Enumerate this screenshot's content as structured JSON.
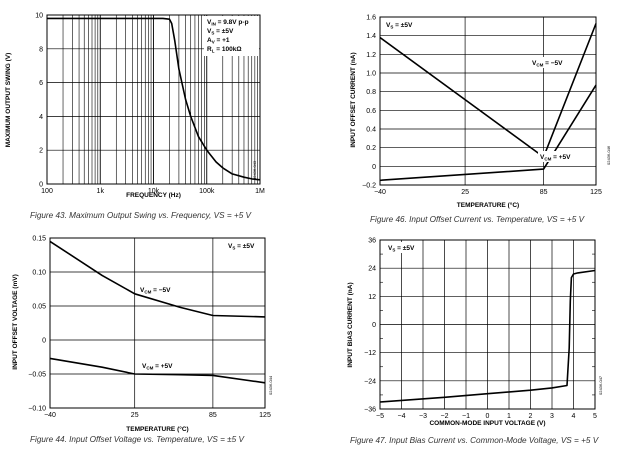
{
  "chart_data": [
    {
      "id": "fig43",
      "type": "line",
      "xscale": "log",
      "title": "",
      "caption": "Figure 43. Maximum Output Swing vs. Frequency, VS = +5 V",
      "xlabel": "FREQUENCY (Hz)",
      "ylabel": "MAXIMUM OUTPUT SWING (V)",
      "xlim": [
        100,
        1000000
      ],
      "ylim": [
        0,
        10
      ],
      "xtick_values": [
        100,
        1000,
        10000,
        100000,
        1000000
      ],
      "xtick_labels": [
        "100",
        "1k",
        "10k",
        "100k",
        "1M"
      ],
      "ytick_values": [
        0,
        2,
        4,
        6,
        8,
        10
      ],
      "ytick_labels": [
        "0",
        "2",
        "4",
        "6",
        "8",
        "10"
      ],
      "annotations": [
        "VIN = 9.8V p-p",
        "VS = ±5V",
        "AV = +1",
        "RL = 100kΩ"
      ],
      "code": "02436-043",
      "series": [
        {
          "name": "VOUT",
          "x": [
            100,
            1000,
            10000,
            15000,
            20000,
            22000,
            25000,
            30000,
            40000,
            50000,
            70000,
            100000,
            150000,
            200000,
            300000,
            500000,
            700000,
            1000000
          ],
          "y": [
            9.8,
            9.8,
            9.8,
            9.8,
            9.75,
            9.5,
            8.5,
            6.8,
            5.0,
            4.0,
            2.8,
            2.0,
            1.3,
            0.95,
            0.6,
            0.4,
            0.3,
            0.25
          ]
        }
      ]
    },
    {
      "id": "fig46",
      "type": "line",
      "xscale": "linear",
      "title": "",
      "caption": "Figure 46. Input Offset Current vs. Temperature, VS = +5 V",
      "xlabel": "TEMPERATURE (°C)",
      "ylabel": "INPUT OFFSET CURRENT (nA)",
      "xlim": [
        -40,
        125
      ],
      "ylim": [
        -0.2,
        1.6
      ],
      "xtick_values": [
        -40,
        25,
        85,
        125
      ],
      "xtick_labels": [
        "−40",
        "25",
        "85",
        "125"
      ],
      "ytick_values": [
        -0.2,
        0,
        0.2,
        0.4,
        0.6,
        0.8,
        1.0,
        1.2,
        1.4,
        1.6
      ],
      "ytick_labels": [
        "−0.2",
        "0",
        "0.2",
        "0.4",
        "0.6",
        "0.8",
        "1.0",
        "1.2",
        "1.4",
        "1.6"
      ],
      "annotations": [
        "VS = ±5V",
        "VCM = −5V",
        "VCM = +5V"
      ],
      "code": "02436-046",
      "series": [
        {
          "name": "VCM = −5V",
          "x": [
            -40,
            85,
            125
          ],
          "y": [
            1.38,
            0.1,
            1.53
          ]
        },
        {
          "name": "VCM = +5V",
          "x": [
            -40,
            85,
            125
          ],
          "y": [
            -0.15,
            -0.03,
            0.87
          ]
        }
      ]
    },
    {
      "id": "fig44",
      "type": "line",
      "xscale": "linear",
      "title": "",
      "caption": "Figure 44. Input Offset Voltage vs. Temperature, VS = ±5 V",
      "xlabel": "TEMPERATURE (°C)",
      "ylabel": "INPUT OFFSET VOLTAGE (mV)",
      "xlim": [
        -40,
        125
      ],
      "ylim": [
        -0.1,
        0.15
      ],
      "xtick_values": [
        -40,
        25,
        85,
        125
      ],
      "xtick_labels": [
        "−40",
        "25",
        "85",
        "125"
      ],
      "ytick_values": [
        -0.1,
        -0.05,
        0,
        0.05,
        0.1,
        0.15
      ],
      "ytick_labels": [
        "−0.10",
        "−0.05",
        "0",
        "0.05",
        "0.10",
        "0.15"
      ],
      "annotations": [
        "VS = ±5V",
        "VCM = −5V",
        "VCM = +5V"
      ],
      "code": "02436-044",
      "series": [
        {
          "name": "VCM = −5V",
          "x": [
            -40,
            0,
            25,
            60,
            85,
            125
          ],
          "y": [
            0.145,
            0.095,
            0.068,
            0.048,
            0.036,
            0.034
          ]
        },
        {
          "name": "VCM = +5V",
          "x": [
            -40,
            0,
            25,
            60,
            85,
            125
          ],
          "y": [
            -0.027,
            -0.04,
            -0.05,
            -0.051,
            -0.052,
            -0.063
          ]
        }
      ]
    },
    {
      "id": "fig47",
      "type": "line",
      "xscale": "linear",
      "title": "",
      "caption": "Figure 47. Input Bias Current vs. Common-Mode Voltage, VS = +5 V",
      "xlabel": "COMMON-MODE INPUT VOLTAGE (V)",
      "ylabel": "INPUT BIAS CURRENT (nA)",
      "xlim": [
        -5,
        5
      ],
      "ylim": [
        -36,
        36
      ],
      "xtick_values": [
        -5,
        -4,
        -3,
        -2,
        -1,
        0,
        1,
        2,
        3,
        4,
        5
      ],
      "xtick_labels": [
        "−5",
        "−4",
        "−3",
        "−2",
        "−1",
        "0",
        "1",
        "2",
        "3",
        "4",
        "5"
      ],
      "ytick_values": [
        -36,
        -24,
        -12,
        0,
        12,
        24,
        36
      ],
      "ytick_labels": [
        "−36",
        "−24",
        "−12",
        "0",
        "12",
        "24",
        "36"
      ],
      "annotations": [
        "VS = ±5V"
      ],
      "code": "02436-047",
      "series": [
        {
          "name": "IB",
          "x": [
            -5,
            -2,
            0,
            2,
            3,
            3.7,
            3.8,
            3.85,
            3.9,
            4.0,
            4.2,
            5
          ],
          "y": [
            -33,
            -31,
            -29.5,
            -28,
            -27,
            -26,
            -10,
            10,
            20,
            21.5,
            22,
            23
          ]
        }
      ]
    }
  ]
}
